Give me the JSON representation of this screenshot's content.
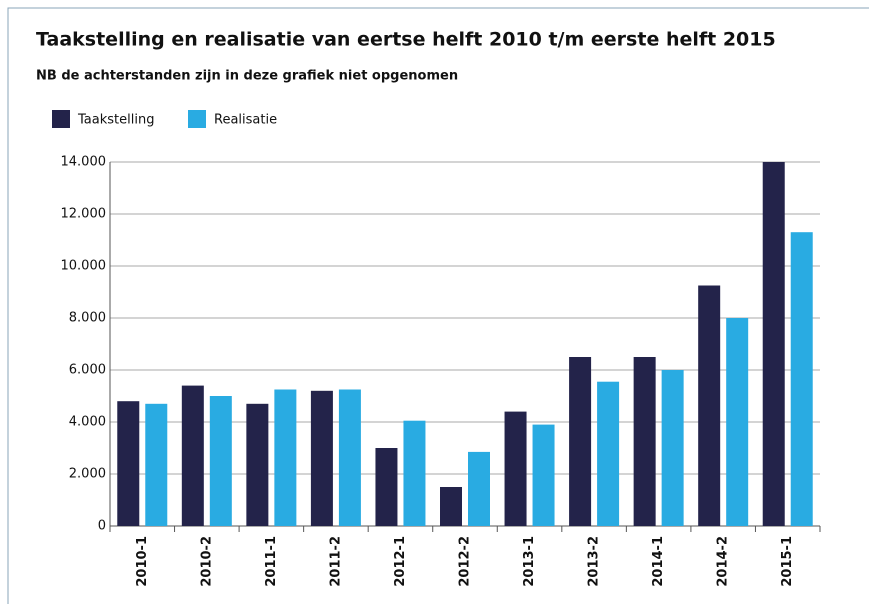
{
  "chart_data": {
    "type": "bar",
    "title": "Taakstelling en realisatie van eertse helft 2010 t/m eerste helft 2015",
    "subtitle": "NB de achterstanden zijn in deze grafiek niet opgenomen",
    "categories": [
      "2010-1",
      "2010-2",
      "2011-1",
      "2011-2",
      "2012-1",
      "2012-2",
      "2013-1",
      "2013-2",
      "2014-1",
      "2014-2",
      "2015-1"
    ],
    "series": [
      {
        "name": "Taakstelling",
        "color": "#23234a",
        "values": [
          4800,
          5400,
          4700,
          5200,
          3000,
          1500,
          4400,
          6500,
          6500,
          9250,
          14000
        ]
      },
      {
        "name": "Realisatie",
        "color": "#29abe2",
        "values": [
          4700,
          5000,
          5250,
          5250,
          4050,
          2850,
          3900,
          5550,
          6000,
          8000,
          11300
        ]
      }
    ],
    "ylim": [
      0,
      14000
    ],
    "yticks": [
      0,
      {
        "value": 2000,
        "label": "2.000"
      },
      {
        "value": 4000,
        "label": "4.000"
      },
      {
        "value": 6000,
        "label": "6.000"
      },
      {
        "value": 8000,
        "label": "8.000"
      },
      {
        "value": 10000,
        "label": "10.000"
      },
      {
        "value": 12000,
        "label": "12.000"
      },
      {
        "value": 14000,
        "label": "14.000"
      }
    ],
    "grid": true,
    "legend": "top-left"
  }
}
